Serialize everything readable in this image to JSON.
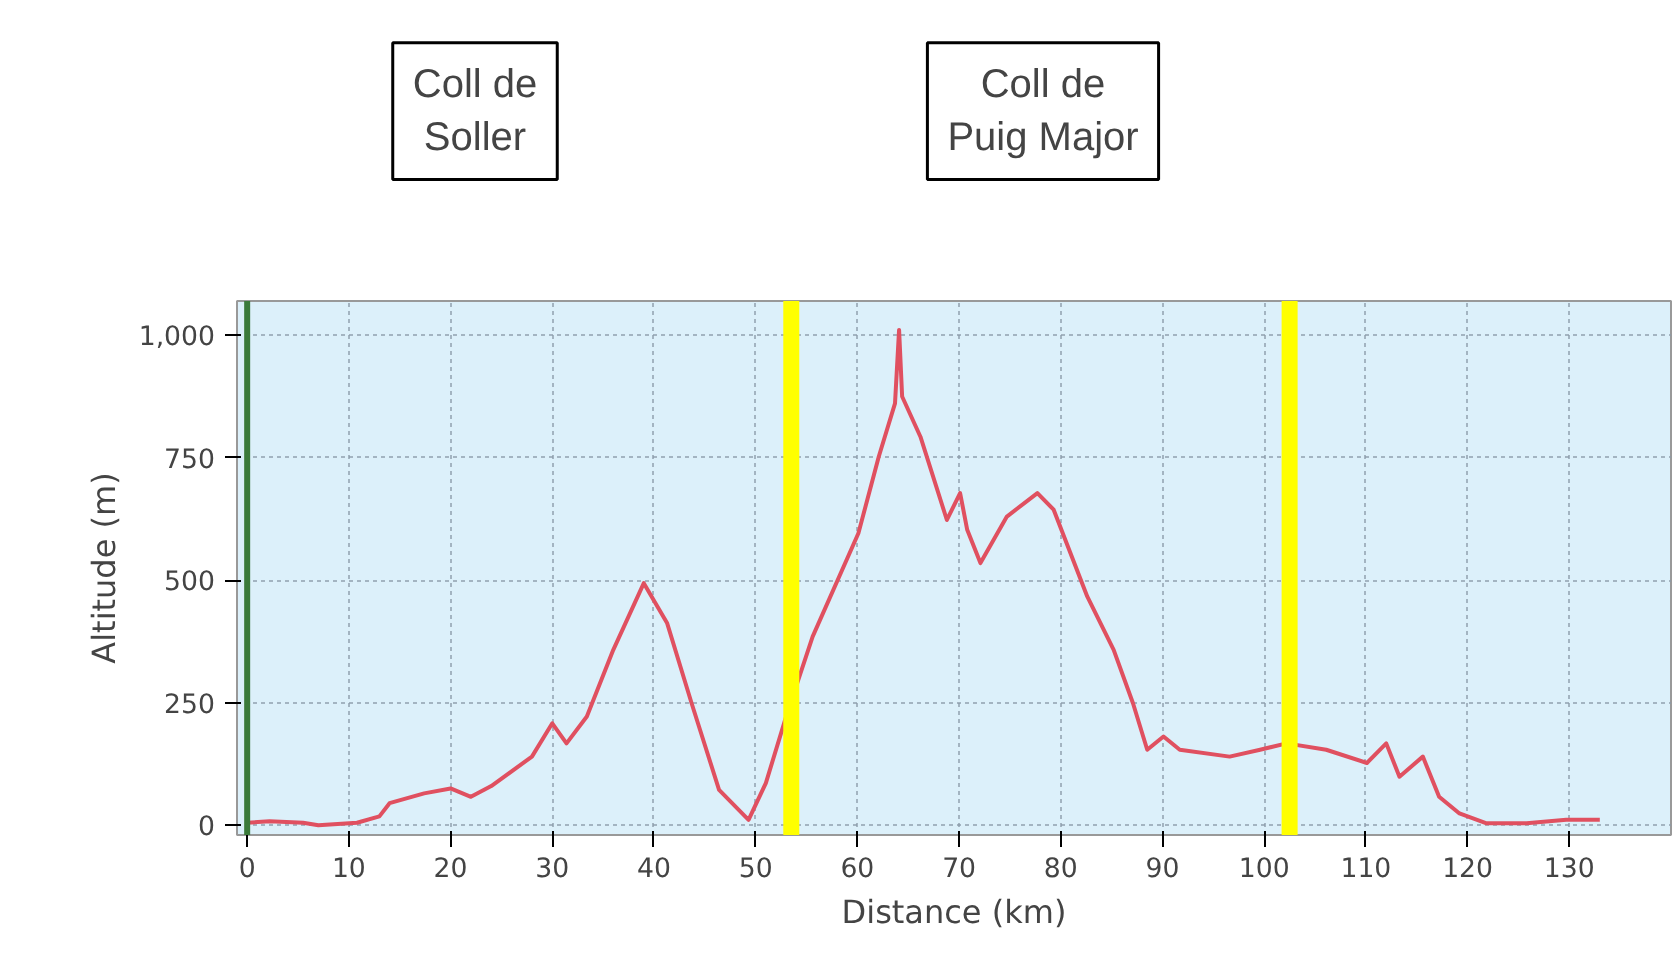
{
  "chart_data": {
    "type": "line",
    "xlabel": "Distance (km)",
    "ylabel": "Altitude (m)",
    "x": [
      0,
      2.2,
      5.5,
      7,
      10.8,
      13,
      14,
      17.4,
      20,
      22,
      24,
      28,
      30,
      31.4,
      33.4,
      36,
      39,
      41.3,
      43.7,
      46.4,
      49.3,
      51,
      53,
      55.6,
      60.1,
      62.1,
      63.7,
      64.1,
      64.4,
      66.2,
      68.8,
      70.1,
      70.8,
      72.1,
      74.7,
      77.7,
      79.3,
      82.6,
      85.2,
      87.1,
      88.5,
      90.1,
      91.7,
      96.6,
      99.6,
      102.2,
      106.1,
      110.1,
      112,
      113.3,
      115.6,
      117.2,
      119.2,
      121.8,
      125.8,
      129.7,
      133
    ],
    "series": [
      {
        "color": "#e05060",
        "values": [
          5,
          8,
          5,
          0,
          5,
          18,
          45,
          65,
          75,
          58,
          80,
          140,
          208,
          167,
          222,
          358,
          494,
          412,
          249,
          72,
          11,
          86,
          222,
          385,
          596,
          752,
          861,
          1011,
          875,
          793,
          623,
          678,
          603,
          535,
          630,
          678,
          644,
          467,
          358,
          249,
          154,
          181,
          154,
          140,
          154,
          167,
          154,
          127,
          167,
          99,
          140,
          58,
          24,
          4,
          4,
          11,
          11
        ]
      }
    ],
    "xlim": [
      -1,
      140
    ],
    "ylim": [
      -20,
      1070
    ],
    "xticks": [
      0,
      10,
      20,
      30,
      40,
      50,
      60,
      70,
      80,
      90,
      100,
      110,
      120,
      130
    ],
    "yticks": [
      0,
      250,
      500,
      750,
      {
        "value": 1000,
        "label": "1,000"
      }
    ],
    "grid": true,
    "marker": "none",
    "line_style": "solid",
    "ref_lines": [
      {
        "axis": "x",
        "value": 0,
        "label": null,
        "color": "#3a7a3a"
      },
      {
        "axis": "x",
        "value": 53.5,
        "label": null,
        "color": "#ffff00"
      },
      {
        "axis": "x",
        "value": 102.5,
        "label": null,
        "color": "#ffff00"
      }
    ],
    "annotations": [
      "Coll de\nSoller",
      "Coll de\nPuig Major"
    ]
  }
}
